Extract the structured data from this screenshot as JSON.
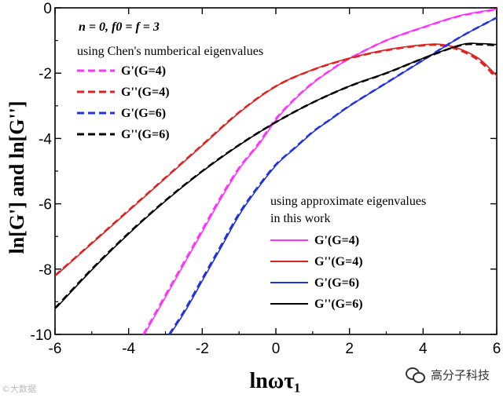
{
  "chart_data": {
    "type": "line",
    "xlabel": "lnωτ₁",
    "ylabel": "ln[G'] and ln[G'']",
    "xlim": [
      -6,
      6
    ],
    "ylim": [
      -10,
      0
    ],
    "xticks": [
      "-6",
      "-4",
      "-2",
      "0",
      "2",
      "4",
      "6"
    ],
    "yticks": [
      "0",
      "-2",
      "-4",
      "-6",
      "-8",
      "-10"
    ],
    "annotation": "n = 0,  f0 = f = 3",
    "legend_top": {
      "title": "using Chen's numberical eigenvalues",
      "style": "dashed",
      "entries": [
        "G'(G=4)",
        "G''(G=4)",
        "G'(G=6)",
        "G''(G=6)"
      ]
    },
    "legend_bottom": {
      "title_line1": "using approximate eigenvalues",
      "title_line2": "in this work",
      "style": "solid",
      "entries": [
        "G'(G=4)",
        "G''(G=4)",
        "G'(G=6)",
        "G''(G=6)"
      ]
    },
    "series": [
      {
        "name": "G'(G=4)",
        "color": "#ff33ff",
        "x": [
          -3.6,
          -3.0,
          -2.5,
          -2.0,
          -1.5,
          -1.0,
          -0.5,
          0.0,
          0.5,
          1.0,
          1.5,
          2.0,
          3.0,
          4.0,
          5.0,
          6.0
        ],
        "y": [
          -10.0,
          -8.8,
          -7.8,
          -6.8,
          -5.8,
          -4.9,
          -4.2,
          -3.4,
          -2.8,
          -2.3,
          -1.9,
          -1.55,
          -1.0,
          -0.6,
          -0.25,
          -0.05
        ]
      },
      {
        "name": "G''(G=4)",
        "color": "#dd2222",
        "x": [
          -6.0,
          -5.0,
          -4.0,
          -3.0,
          -2.0,
          -1.0,
          0.0,
          1.0,
          2.0,
          3.0,
          4.0,
          4.5,
          5.0,
          5.5,
          6.0
        ],
        "y": [
          -8.2,
          -7.2,
          -6.2,
          -5.2,
          -4.2,
          -3.2,
          -2.4,
          -1.9,
          -1.55,
          -1.3,
          -1.15,
          -1.15,
          -1.3,
          -1.6,
          -2.15
        ]
      },
      {
        "name": "G'(G=6)",
        "color": "#2233dd",
        "x": [
          -2.9,
          -2.5,
          -2.0,
          -1.5,
          -1.0,
          -0.5,
          0.0,
          0.5,
          1.0,
          1.5,
          2.0,
          3.0,
          4.0,
          5.0,
          6.0
        ],
        "y": [
          -10.0,
          -9.3,
          -8.3,
          -7.3,
          -6.3,
          -5.5,
          -4.8,
          -4.3,
          -3.8,
          -3.4,
          -3.0,
          -2.3,
          -1.6,
          -0.9,
          -0.3
        ]
      },
      {
        "name": "G''(G=6)",
        "color": "#000000",
        "x": [
          -6.0,
          -5.0,
          -4.0,
          -3.0,
          -2.0,
          -1.0,
          0.0,
          1.0,
          2.0,
          3.0,
          4.0,
          5.0,
          5.5,
          6.0
        ],
        "y": [
          -9.2,
          -8.0,
          -6.9,
          -5.9,
          -5.0,
          -4.2,
          -3.5,
          -2.9,
          -2.4,
          -2.0,
          -1.55,
          -1.15,
          -1.12,
          -1.15
        ]
      }
    ]
  },
  "watermark_left": "©大数据",
  "watermark_right": "高分子科技",
  "wechat_icon": "wechat-logo-icon"
}
